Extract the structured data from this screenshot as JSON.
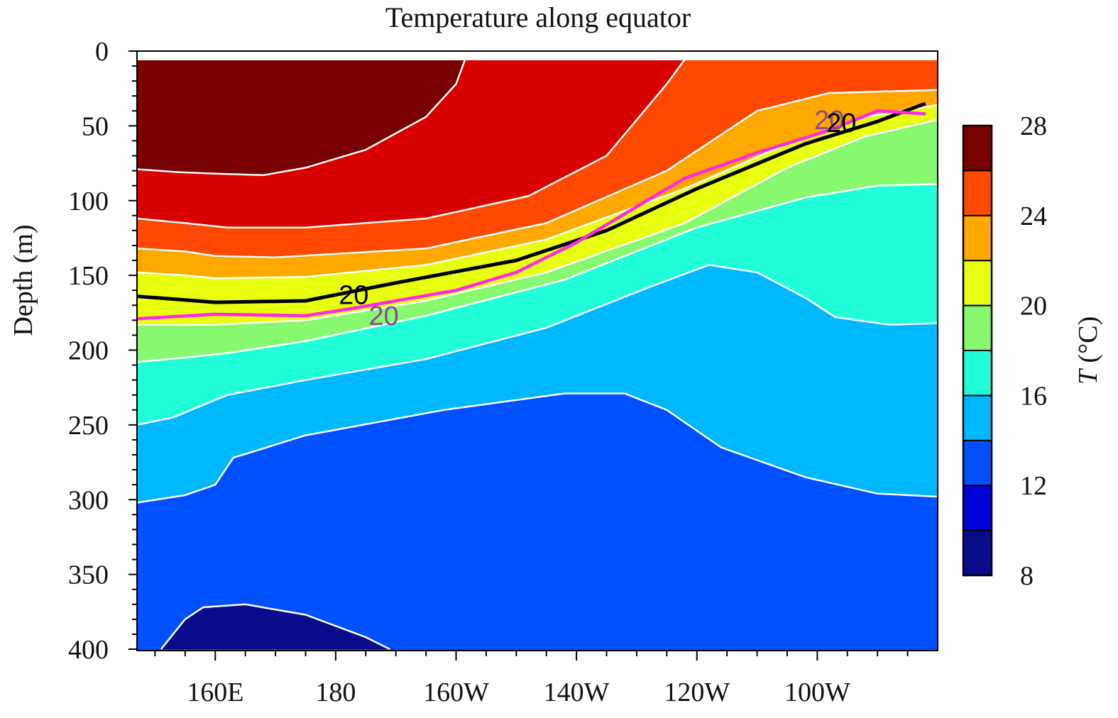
{
  "chart_data": {
    "type": "contour",
    "title": "Temperature along equator",
    "xlabel": "",
    "ylabel": "Depth (m)",
    "x_ticks": [
      "160E",
      "180",
      "160W",
      "140W",
      "120W",
      "100W"
    ],
    "x_tick_lon_east": [
      160,
      180,
      200,
      220,
      240,
      260
    ],
    "xlim_lon_east": [
      147,
      280
    ],
    "y_ticks": [
      "0",
      "50",
      "100",
      "150",
      "200",
      "250",
      "300",
      "350",
      "400"
    ],
    "ylim": [
      0,
      400
    ],
    "colorbar": {
      "label_italic": "T",
      "label_unit": " (°C)",
      "levels": [
        8,
        10,
        12,
        14,
        16,
        18,
        20,
        22,
        24,
        26,
        28
      ],
      "tick_labels": [
        "8",
        "12",
        "16",
        "20",
        "24",
        "28"
      ],
      "colors": [
        "#0a0a8c",
        "#0000d8",
        "#0050ff",
        "#00b8ff",
        "#20ffd8",
        "#88f870",
        "#e8ff10",
        "#ffa800",
        "#ff4800",
        "#d80000",
        "#780000"
      ]
    },
    "isotherm_20_black": {
      "name": "20 °C isotherm (black)",
      "color": "#000000",
      "label": "20",
      "points": [
        [
          147,
          164
        ],
        [
          160,
          168
        ],
        [
          175,
          167
        ],
        [
          190,
          155
        ],
        [
          210,
          140
        ],
        [
          225,
          120
        ],
        [
          240,
          92
        ],
        [
          258,
          62
        ],
        [
          270,
          47
        ],
        [
          278,
          35
        ]
      ]
    },
    "isotherm_20_magenta": {
      "name": "20 °C isotherm (magenta)",
      "color": "#ff28e8",
      "label": "20",
      "points": [
        [
          147,
          179
        ],
        [
          160,
          176
        ],
        [
          175,
          177
        ],
        [
          183,
          172
        ],
        [
          200,
          160
        ],
        [
          210,
          148
        ],
        [
          220,
          128
        ],
        [
          238,
          85
        ],
        [
          250,
          68
        ],
        [
          262,
          53
        ],
        [
          270,
          40
        ],
        [
          278,
          42
        ]
      ]
    },
    "contour_labels": [
      {
        "value": "20",
        "line": "black",
        "lon": 183,
        "depth": 163
      },
      {
        "value": "20",
        "line": "magenta",
        "lon": 188,
        "depth": 177
      },
      {
        "value": "20",
        "line": "magenta",
        "lon": 262,
        "depth": 46
      },
      {
        "value": "20",
        "line": "black",
        "lon": 264,
        "depth": 48
      }
    ]
  }
}
